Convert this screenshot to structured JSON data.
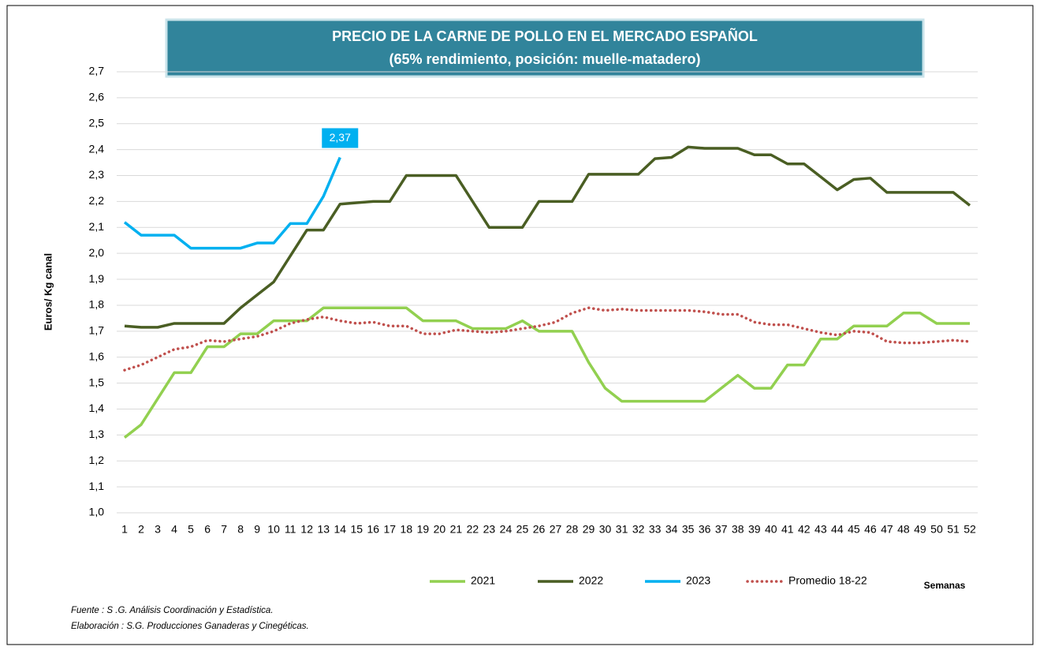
{
  "chart_data": {
    "type": "line",
    "title": [
      "PRECIO DE LA CARNE DE POLLO EN EL MERCADO ESPAÑOL",
      "(65% rendimiento, posición: muelle-matadero)"
    ],
    "y_label": "Euros/ Kg canal",
    "x_label": "Semanas",
    "categories": [
      "1",
      "2",
      "3",
      "4",
      "5",
      "6",
      "7",
      "8",
      "9",
      "10",
      "11",
      "12",
      "13",
      "14",
      "15",
      "16",
      "17",
      "18",
      "19",
      "20",
      "21",
      "22",
      "23",
      "24",
      "25",
      "26",
      "27",
      "28",
      "29",
      "30",
      "31",
      "32",
      "33",
      "34",
      "35",
      "36",
      "37",
      "38",
      "39",
      "40",
      "41",
      "42",
      "43",
      "44",
      "45",
      "46",
      "47",
      "48",
      "49",
      "50",
      "51",
      "52"
    ],
    "ylim": [
      1.0,
      2.7
    ],
    "yticks": [
      {
        "value": 1.0,
        "label": "1,0"
      },
      {
        "value": 1.1,
        "label": "1,1"
      },
      {
        "value": 1.2,
        "label": "1,2"
      },
      {
        "value": 1.3,
        "label": "1,3"
      },
      {
        "value": 1.4,
        "label": "1,4"
      },
      {
        "value": 1.5,
        "label": "1,5"
      },
      {
        "value": 1.6,
        "label": "1,6"
      },
      {
        "value": 1.7,
        "label": "1,7"
      },
      {
        "value": 1.8,
        "label": "1,8"
      },
      {
        "value": 1.9,
        "label": "1,9"
      },
      {
        "value": 2.0,
        "label": "2,0"
      },
      {
        "value": 2.1,
        "label": "2,1"
      },
      {
        "value": 2.2,
        "label": "2,2"
      },
      {
        "value": 2.3,
        "label": "2,3"
      },
      {
        "value": 2.4,
        "label": "2,4"
      },
      {
        "value": 2.5,
        "label": "2,5"
      },
      {
        "value": 2.6,
        "label": "2,6"
      },
      {
        "value": 2.7,
        "label": "2,7"
      }
    ],
    "grid": true,
    "legend": "bottom",
    "series": [
      {
        "name": "2021",
        "color": "#92d050",
        "style": "solid",
        "values": [
          1.29,
          1.34,
          1.44,
          1.54,
          1.54,
          1.64,
          1.64,
          1.69,
          1.69,
          1.74,
          1.74,
          1.74,
          1.79,
          1.79,
          1.79,
          1.79,
          1.79,
          1.79,
          1.74,
          1.74,
          1.74,
          1.71,
          1.71,
          1.71,
          1.74,
          1.7,
          1.7,
          1.7,
          1.58,
          1.48,
          1.43,
          1.43,
          1.43,
          1.43,
          1.43,
          1.43,
          1.48,
          1.53,
          1.48,
          1.48,
          1.57,
          1.57,
          1.67,
          1.67,
          1.72,
          1.72,
          1.72,
          1.77,
          1.77,
          1.73,
          1.73,
          1.73
        ]
      },
      {
        "name": "2022",
        "color": "#4a5e23",
        "style": "solid",
        "values": [
          1.72,
          1.715,
          1.715,
          1.73,
          1.73,
          1.73,
          1.73,
          1.79,
          1.84,
          1.89,
          1.99,
          2.09,
          2.09,
          2.19,
          2.195,
          2.2,
          2.2,
          2.3,
          2.3,
          2.3,
          2.3,
          2.2,
          2.1,
          2.1,
          2.1,
          2.2,
          2.2,
          2.2,
          2.305,
          2.305,
          2.305,
          2.305,
          2.365,
          2.37,
          2.41,
          2.405,
          2.405,
          2.405,
          2.38,
          2.38,
          2.345,
          2.345,
          2.295,
          2.245,
          2.285,
          2.29,
          2.235,
          2.235,
          2.235,
          2.235,
          2.235,
          2.185
        ]
      },
      {
        "name": "2023",
        "color": "#00b0f0",
        "style": "solid",
        "values": [
          2.12,
          2.07,
          2.07,
          2.07,
          2.02,
          2.02,
          2.02,
          2.02,
          2.04,
          2.04,
          2.115,
          2.115,
          2.22,
          2.37,
          null,
          null,
          null,
          null,
          null,
          null,
          null,
          null,
          null,
          null,
          null,
          null,
          null,
          null,
          null,
          null,
          null,
          null,
          null,
          null,
          null,
          null,
          null,
          null,
          null,
          null,
          null,
          null,
          null,
          null,
          null,
          null,
          null,
          null,
          null,
          null,
          null,
          null
        ],
        "value_labels": [
          null,
          null,
          null,
          null,
          null,
          null,
          null,
          null,
          null,
          null,
          null,
          null,
          null,
          "2,37",
          null,
          null,
          null,
          null,
          null,
          null,
          null,
          null,
          null,
          null,
          null,
          null,
          null,
          null,
          null,
          null,
          null,
          null,
          null,
          null,
          null,
          null,
          null,
          null,
          null,
          null,
          null,
          null,
          null,
          null,
          null,
          null,
          null,
          null,
          null,
          null,
          null,
          null
        ]
      },
      {
        "name": "Promedio 18-22",
        "color": "#c0504d",
        "style": "dotted",
        "values": [
          1.55,
          1.57,
          1.6,
          1.63,
          1.64,
          1.665,
          1.66,
          1.67,
          1.68,
          1.7,
          1.73,
          1.745,
          1.755,
          1.74,
          1.73,
          1.735,
          1.72,
          1.72,
          1.69,
          1.69,
          1.705,
          1.7,
          1.695,
          1.7,
          1.71,
          1.72,
          1.735,
          1.77,
          1.79,
          1.78,
          1.785,
          1.78,
          1.78,
          1.78,
          1.78,
          1.775,
          1.765,
          1.765,
          1.735,
          1.725,
          1.725,
          1.71,
          1.695,
          1.685,
          1.7,
          1.695,
          1.66,
          1.655,
          1.655,
          1.66,
          1.665,
          1.66
        ]
      }
    ],
    "notes": [
      "Fuente :  S .G. Análisis Coordinación y Estadística.",
      "Elaboración : S.G. Producciones Ganaderas y Cinegéticas."
    ]
  }
}
